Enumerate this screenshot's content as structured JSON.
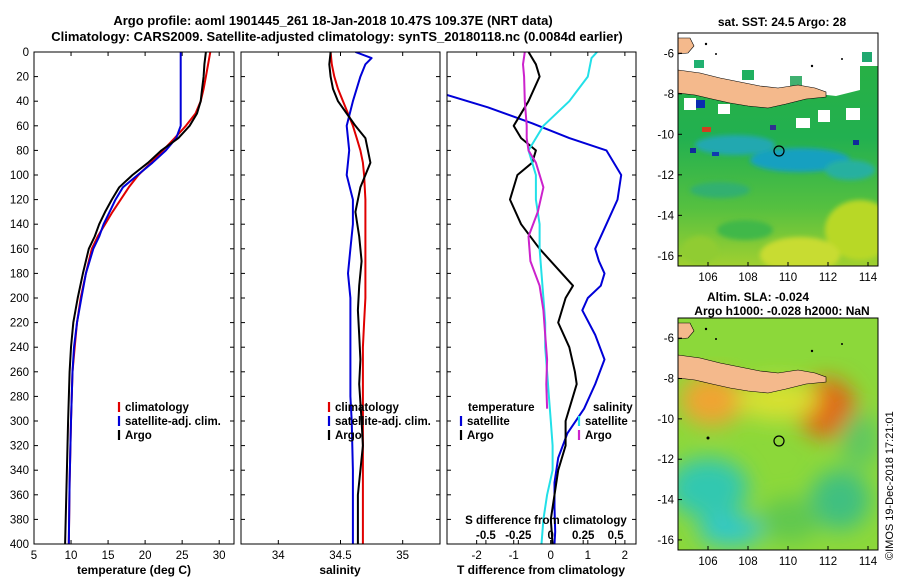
{
  "header": {
    "line1": "Argo profile: aoml 1901445_261 18-Jan-2018 10.47S 109.37E (NRT data)",
    "line2": "Climatology: CARS2009. Satellite-adjusted climatology: synTS_20180118.nc (0.0084d earlier)"
  },
  "colors": {
    "climatology": "#e00000",
    "satellite": "#0000d8",
    "argo": "#000000",
    "sat_salinity": "#22e0e8",
    "argo_salinity": "#cc22cc",
    "land": "#f4b98c"
  },
  "depth_axis": {
    "ticks": [
      "0",
      "20",
      "40",
      "60",
      "80",
      "100",
      "120",
      "140",
      "160",
      "180",
      "200",
      "220",
      "240",
      "260",
      "280",
      "300",
      "320",
      "340",
      "360",
      "380",
      "400"
    ],
    "ylim": [
      0,
      400
    ]
  },
  "chart_data": [
    {
      "type": "line",
      "name": "temperature",
      "xlabel": "temperature (deg C)",
      "xlim": [
        5,
        32
      ],
      "xticks": [
        5,
        10,
        15,
        20,
        25,
        30
      ],
      "xtick_labels": [
        "5",
        "10",
        "15",
        "20",
        "25",
        "30"
      ],
      "legend": [
        "climatology",
        "satellite-adj. clim.",
        "Argo"
      ],
      "series": [
        {
          "name": "climatology",
          "color": "#e00000",
          "x": [
            28.8,
            28.5,
            28.2,
            27.9,
            27.5,
            26.8,
            25.5,
            24.0,
            22.4,
            20.8,
            19.1,
            17.8,
            16.7,
            15.6,
            14.6,
            13.6,
            12.8,
            12.0,
            11.3,
            10.8,
            10.5,
            10.2,
            10.0,
            9.8,
            9.7
          ],
          "y": [
            0,
            10,
            20,
            30,
            40,
            50,
            60,
            70,
            80,
            90,
            100,
            110,
            120,
            130,
            140,
            150,
            160,
            180,
            200,
            220,
            240,
            260,
            300,
            350,
            400
          ]
        },
        {
          "name": "satellite-adj. clim.",
          "color": "#0000d8",
          "x": [
            24.8,
            24.8,
            24.8,
            24.8,
            24.8,
            24.8,
            24.8,
            24.2,
            22.8,
            21.0,
            19.0,
            17.0,
            16.0,
            15.2,
            14.4,
            13.8,
            13.0,
            12.0,
            11.4,
            10.8,
            10.4,
            10.2,
            10.0,
            9.8,
            9.7
          ],
          "y": [
            0,
            10,
            20,
            30,
            40,
            50,
            60,
            70,
            80,
            90,
            100,
            110,
            120,
            130,
            140,
            150,
            160,
            180,
            200,
            220,
            240,
            260,
            300,
            350,
            400
          ]
        },
        {
          "name": "Argo",
          "color": "#000000",
          "x": [
            28.2,
            28.0,
            27.9,
            27.7,
            27.5,
            27.0,
            26.0,
            24.5,
            22.2,
            20.4,
            18.3,
            16.5,
            15.5,
            14.6,
            13.8,
            13.2,
            12.4,
            11.6,
            10.9,
            10.3,
            10.0,
            9.8,
            9.6,
            9.4,
            9.2
          ],
          "y": [
            0,
            10,
            20,
            30,
            40,
            50,
            60,
            70,
            80,
            90,
            100,
            110,
            120,
            130,
            140,
            150,
            160,
            180,
            200,
            220,
            240,
            260,
            300,
            350,
            400
          ]
        }
      ]
    },
    {
      "type": "line",
      "name": "salinity",
      "xlabel": "salinity",
      "xlim": [
        33.7,
        35.3
      ],
      "xticks": [
        34,
        34.5,
        35
      ],
      "xtick_labels": [
        "34",
        "34.5",
        "35"
      ],
      "legend": [
        "climatology",
        "satellite-adj. clim.",
        "Argo"
      ],
      "series": [
        {
          "name": "climatology",
          "color": "#e00000",
          "x": [
            34.42,
            34.43,
            34.45,
            34.48,
            34.52,
            34.56,
            34.6,
            34.63,
            34.66,
            34.68,
            34.69,
            34.7,
            34.7,
            34.7,
            34.7,
            34.7,
            34.69,
            34.68,
            34.68,
            34.68,
            34.68,
            34.68,
            34.68,
            34.68
          ],
          "y": [
            0,
            10,
            20,
            30,
            40,
            50,
            60,
            70,
            80,
            90,
            100,
            120,
            140,
            160,
            180,
            200,
            220,
            240,
            260,
            280,
            300,
            340,
            370,
            400
          ]
        },
        {
          "name": "satellite-adj. clim.",
          "color": "#0000d8",
          "x": [
            34.62,
            34.75,
            34.7,
            34.66,
            34.6,
            34.55,
            34.57,
            34.55,
            34.6,
            34.6,
            34.58,
            34.56,
            34.58,
            34.58,
            34.58,
            34.58,
            34.58,
            34.59,
            34.6,
            34.6,
            34.6
          ],
          "y": [
            0,
            5,
            10,
            20,
            40,
            60,
            80,
            100,
            120,
            140,
            160,
            180,
            200,
            220,
            240,
            260,
            280,
            300,
            340,
            370,
            400
          ]
        },
        {
          "name": "Argo",
          "color": "#000000",
          "x": [
            34.42,
            34.41,
            34.42,
            34.44,
            34.48,
            34.55,
            34.62,
            34.7,
            34.74,
            34.66,
            34.62,
            34.65,
            34.67,
            34.65,
            34.64,
            34.65,
            34.66,
            34.65,
            34.67,
            34.68,
            34.66,
            34.64,
            34.64,
            34.64
          ],
          "y": [
            0,
            10,
            20,
            30,
            40,
            50,
            60,
            70,
            90,
            110,
            130,
            150,
            170,
            190,
            210,
            230,
            250,
            270,
            300,
            320,
            340,
            360,
            380,
            400
          ]
        }
      ]
    },
    {
      "type": "line",
      "name": "difference",
      "xlabel": "T difference from climatology",
      "secondary_xlabel": "S difference from climatology",
      "xlim": [
        -2.8,
        2.3
      ],
      "xticks": [
        -2,
        -1,
        0,
        1,
        2
      ],
      "xtick_labels": [
        "-2",
        "-1",
        "0",
        "1",
        "2"
      ],
      "s_ticks_at_T": [
        -1.75,
        -0.875,
        0,
        0.875,
        1.75
      ],
      "s_tick_labels": [
        "-0.5",
        "-0.25",
        "0",
        "0.25",
        "0.5"
      ],
      "legend": {
        "temperature_heading": "temperature",
        "salinity_heading": "salinity",
        "t_items": [
          "satellite",
          "Argo"
        ],
        "s_items": [
          "satellite",
          "Argo"
        ]
      },
      "series": [
        {
          "name": "T satellite",
          "color": "#0000d8",
          "x": [
            -2.8,
            -1.7,
            -0.5,
            0.5,
            1.5,
            1.9,
            1.8,
            1.5,
            1.2,
            1.3,
            1.45,
            1.35,
            1.0,
            0.85,
            1.2,
            1.45,
            1.2,
            0.9,
            0.45,
            0.2,
            0.1,
            0.1,
            0.12,
            0.1
          ],
          "y": [
            35,
            45,
            58,
            70,
            80,
            100,
            120,
            140,
            160,
            170,
            180,
            190,
            200,
            210,
            230,
            250,
            270,
            290,
            310,
            330,
            350,
            370,
            390,
            400
          ]
        },
        {
          "name": "T Argo",
          "color": "#000000",
          "x": [
            -0.6,
            -0.4,
            -0.3,
            -0.6,
            -1.0,
            -0.8,
            -0.4,
            -0.5,
            -0.9,
            -1.1,
            -0.8,
            -0.3,
            0.3,
            0.6,
            0.4,
            0.2,
            0.5,
            0.65,
            0.7,
            0.6,
            0.4,
            0.4,
            0.2,
            0.1,
            0.0,
            0.05
          ],
          "y": [
            0,
            10,
            20,
            40,
            60,
            70,
            80,
            90,
            100,
            120,
            140,
            160,
            180,
            190,
            200,
            220,
            240,
            260,
            270,
            280,
            300,
            320,
            340,
            360,
            380,
            400
          ]
        },
        {
          "name": "S satellite",
          "color": "#22e0e8",
          "x": [
            1.25,
            1.1,
            1.0,
            0.5,
            -0.2,
            -0.6,
            -0.4,
            -0.4,
            -0.3,
            -0.3,
            -0.25,
            -0.2,
            -0.15,
            -0.15,
            -0.1,
            -0.05,
            0.0,
            0.05,
            0.05,
            -0.1,
            -0.2,
            -0.25
          ],
          "y": [
            0,
            5,
            20,
            40,
            60,
            80,
            100,
            120,
            140,
            160,
            180,
            200,
            220,
            240,
            260,
            280,
            300,
            320,
            340,
            360,
            380,
            400
          ]
        },
        {
          "name": "S Argo",
          "color": "#cc22cc",
          "x": [
            -0.7,
            -0.75,
            -0.72,
            -0.7,
            -0.65,
            -0.65,
            -0.6,
            -0.4,
            -0.2,
            -0.35,
            -0.6,
            -0.55,
            -0.3,
            -0.2,
            -0.15,
            -0.1,
            -0.12,
            -0.1
          ],
          "y": [
            0,
            10,
            20,
            40,
            60,
            70,
            80,
            90,
            110,
            130,
            150,
            170,
            190,
            210,
            230,
            250,
            270,
            290
          ]
        }
      ]
    }
  ],
  "maps": [
    {
      "name": "sst",
      "title": "sat. SST: 24.5 Argo: 28",
      "lon_ticks": [
        "106",
        "108",
        "110",
        "112",
        "114"
      ],
      "lat_ticks": [
        "-6",
        "-8",
        "-10",
        "-12",
        "-14",
        "-16"
      ]
    },
    {
      "name": "sla",
      "title_line1": "Altim. SLA: -0.024",
      "title_line2": "Argo h1000: -0.028 h2000: NaN",
      "lon_ticks": [
        "106",
        "108",
        "110",
        "112",
        "114"
      ],
      "lat_ticks": [
        "-6",
        "-8",
        "-10",
        "-12",
        "-14",
        "-16"
      ]
    }
  ],
  "footer": {
    "credit": "©IMOS 19-Dec-2018 17:21:01"
  }
}
